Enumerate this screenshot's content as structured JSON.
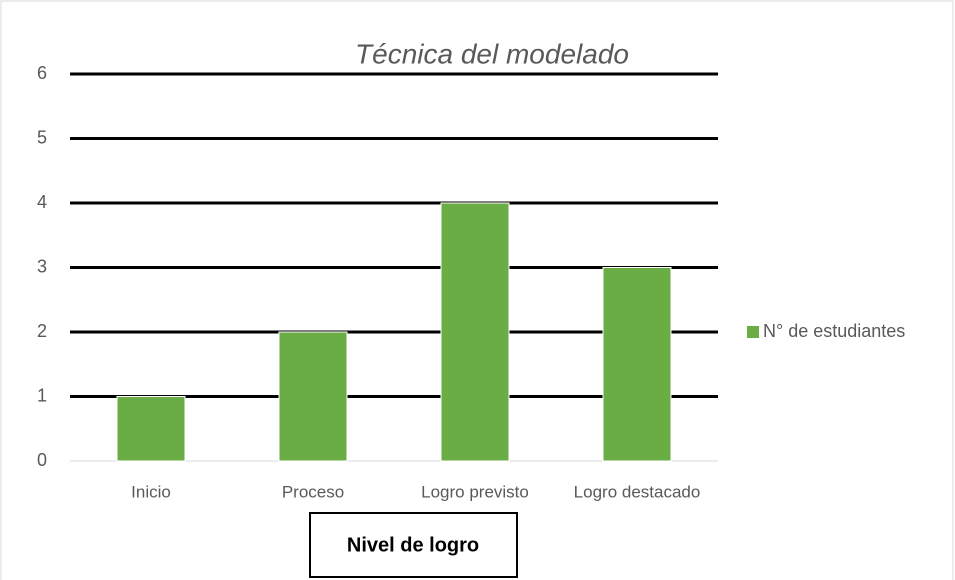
{
  "chart_data": {
    "type": "bar",
    "title": "Técnica del modelado",
    "x_label": "Nivel de logro",
    "categories": [
      "Inicio",
      "Proceso",
      "Logro previsto",
      "Logro destacado"
    ],
    "series": [
      {
        "name": "N° de estudiantes",
        "color": "#6aad44",
        "values": [
          1,
          2,
          4,
          3
        ]
      }
    ],
    "ylim": [
      0,
      6
    ],
    "yticks": [
      0,
      1,
      2,
      3,
      4,
      5,
      6
    ],
    "grid": true,
    "legend": "right"
  }
}
